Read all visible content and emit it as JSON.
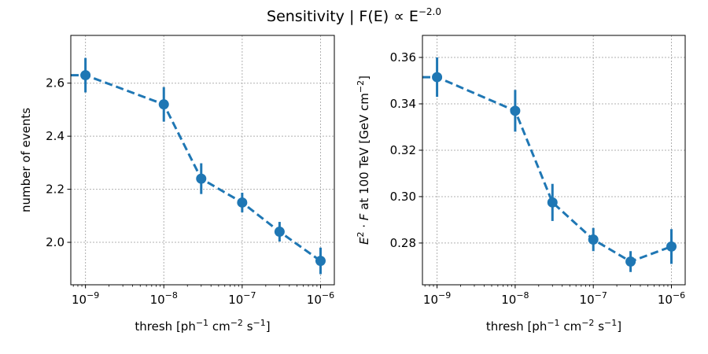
{
  "chart_data": {
    "title": "Sensitivity | F(E) ∝ E^{-2.0}",
    "title_parts": {
      "prefix": "Sensitivity | F(E) ∝ E",
      "exponent": "−2.0"
    },
    "color": "#1f77b4",
    "grid": true,
    "panels": [
      {
        "type": "line",
        "xscale": "log",
        "xlim": [
          6.5e-10,
          1.5e-06
        ],
        "ylim": [
          1.84,
          2.78
        ],
        "xlabel": "thresh [ph⁻¹ cm⁻² s⁻¹]",
        "xlabel_parts": {
          "base": "thresh",
          "unit": "ph⁻¹ cm⁻² s⁻¹"
        },
        "ylabel": "number of events",
        "xtick_labels": [
          {
            "x": 1e-09,
            "label": "10",
            "exp": "−9"
          },
          {
            "x": 1e-08,
            "label": "10",
            "exp": "−8"
          },
          {
            "x": 1e-07,
            "label": "10",
            "exp": "−7"
          },
          {
            "x": 1e-06,
            "label": "10",
            "exp": "−6"
          }
        ],
        "ytick_labels": [
          {
            "y": 2.0,
            "label": "2.0"
          },
          {
            "y": 2.2,
            "label": "2.2"
          },
          {
            "y": 2.4,
            "label": "2.4"
          },
          {
            "y": 2.6,
            "label": "2.6"
          }
        ],
        "series": [
          {
            "points": [
              {
                "x": 1e-09,
                "y": 2.63,
                "err": 0.065
              },
              {
                "x": 1e-08,
                "y": 2.52,
                "err": 0.065
              },
              {
                "x": 3e-08,
                "y": 2.24,
                "err": 0.058
              },
              {
                "x": 1e-07,
                "y": 2.15,
                "err": 0.037
              },
              {
                "x": 3e-07,
                "y": 2.04,
                "err": 0.037
              },
              {
                "x": 1e-06,
                "y": 1.93,
                "err": 0.05
              }
            ],
            "left_extension_y": 2.63
          }
        ]
      },
      {
        "type": "line",
        "xscale": "log",
        "xlim": [
          6.5e-10,
          1.5e-06
        ],
        "ylim": [
          0.262,
          0.3695
        ],
        "xlabel": "thresh [ph⁻¹ cm⁻² s⁻¹]",
        "xlabel_parts": {
          "base": "thresh",
          "unit": "ph⁻¹ cm⁻² s⁻¹"
        },
        "ylabel": "E² · F at 100 TeV [GeV cm⁻²]",
        "ylabel_parts": {
          "main": "E² · F at 100 TeV",
          "unit": "GeV cm⁻²"
        },
        "xtick_labels": [
          {
            "x": 1e-09,
            "label": "10",
            "exp": "−9"
          },
          {
            "x": 1e-08,
            "label": "10",
            "exp": "−8"
          },
          {
            "x": 1e-07,
            "label": "10",
            "exp": "−7"
          },
          {
            "x": 1e-06,
            "label": "10",
            "exp": "−6"
          }
        ],
        "ytick_labels": [
          {
            "y": 0.28,
            "label": "0.28"
          },
          {
            "y": 0.3,
            "label": "0.30"
          },
          {
            "y": 0.32,
            "label": "0.32"
          },
          {
            "y": 0.34,
            "label": "0.34"
          },
          {
            "y": 0.36,
            "label": "0.36"
          }
        ],
        "series": [
          {
            "points": [
              {
                "x": 1e-09,
                "y": 0.3515,
                "err": 0.0085
              },
              {
                "x": 1e-08,
                "y": 0.337,
                "err": 0.009
              },
              {
                "x": 3e-08,
                "y": 0.2975,
                "err": 0.008
              },
              {
                "x": 1e-07,
                "y": 0.2815,
                "err": 0.005
              },
              {
                "x": 3e-07,
                "y": 0.272,
                "err": 0.0045
              },
              {
                "x": 1e-06,
                "y": 0.2785,
                "err": 0.0075
              }
            ],
            "left_extension_y": 0.3515
          }
        ]
      }
    ]
  }
}
